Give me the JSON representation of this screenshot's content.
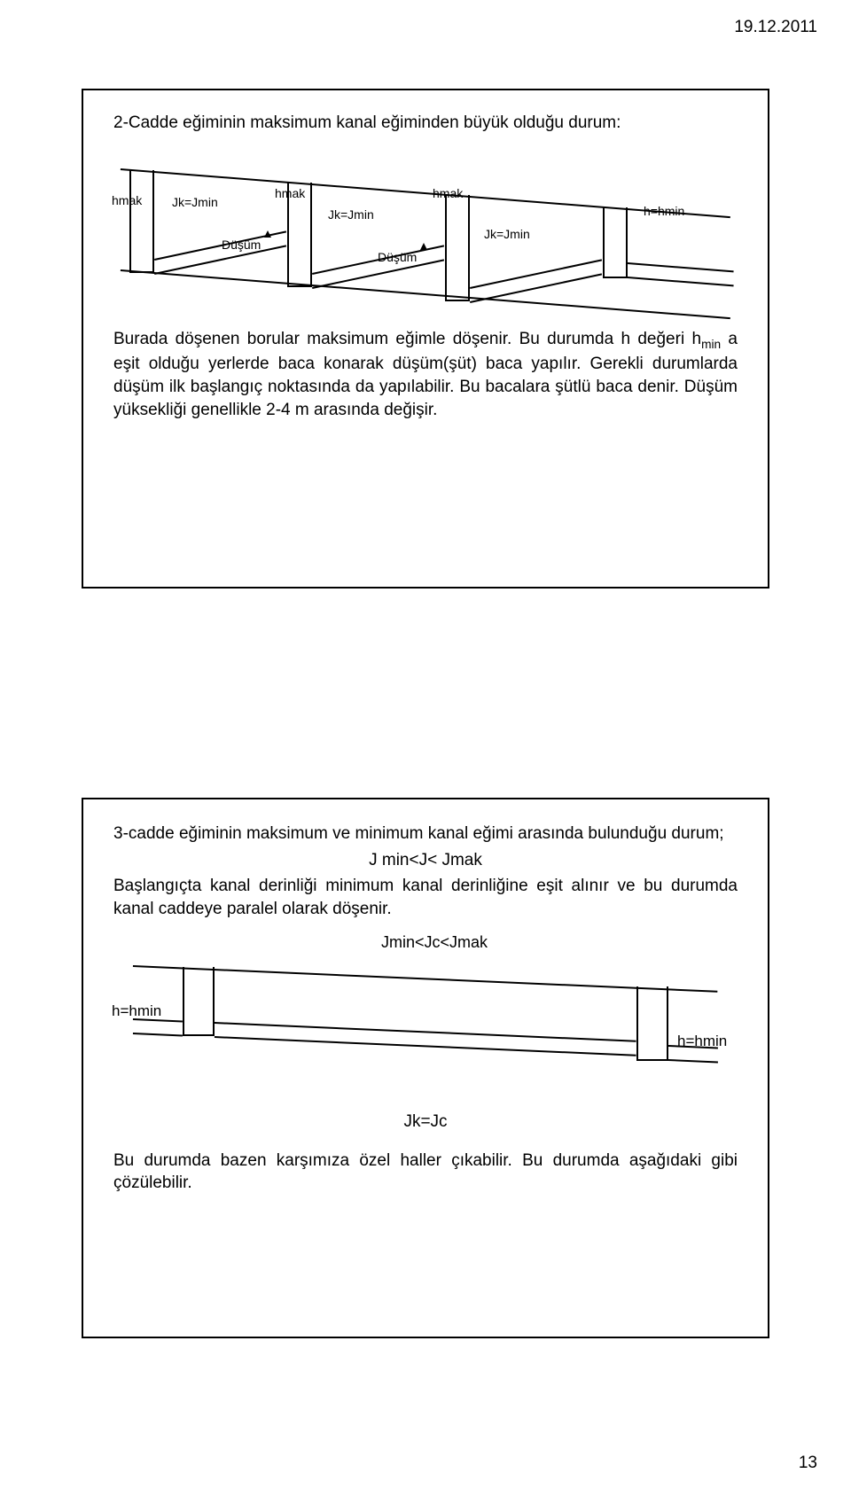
{
  "date": "19.12.2011",
  "page_number": "13",
  "slide1": {
    "title": "2-Cadde eğiminin maksimum kanal eğiminden büyük olduğu durum:",
    "diagram": {
      "hmak1": "hmak",
      "hmak2": "hmak",
      "hmak3": "hmak",
      "jk1": "Jk=Jmin",
      "jk2": "Jk=Jmin",
      "jk3": "Jk=Jmin",
      "dusum1": "Düşüm",
      "dusum2": "Düşüm",
      "hhmin": "h=hmin"
    },
    "body_html": "Burada döşenen borular maksimum eğimle döşenir. Bu durumda h değeri h<sub>min</sub> a eşit olduğu yerlerde baca konarak düşüm(şüt) baca yapılır. Gerekli durumlarda düşüm ilk başlangıç noktasında da yapılabilir. Bu bacalara şütlü baca denir. Düşüm yüksekliği genellikle 2-4 m arasında değişir."
  },
  "slide2": {
    "para1": "3-cadde eğiminin maksimum ve minimum kanal eğimi arasında bulunduğu durum;",
    "para1_cond": "J min<J< Jmak",
    "para1_rest": "Başlangıçta kanal derinliği minimum kanal derinliğine eşit alınır ve bu durumda kanal caddeye paralel olarak döşenir.",
    "diagram": {
      "top_label": "Jmin<Jc<Jmak",
      "hhmin_left": "h=hmin",
      "hhmin_right": "h=hmin",
      "jkjc": "Jk=Jc"
    },
    "para2": "Bu durumda bazen karşımıza özel haller çıkabilir. Bu durumda aşağıdaki gibi çözülebilir."
  }
}
